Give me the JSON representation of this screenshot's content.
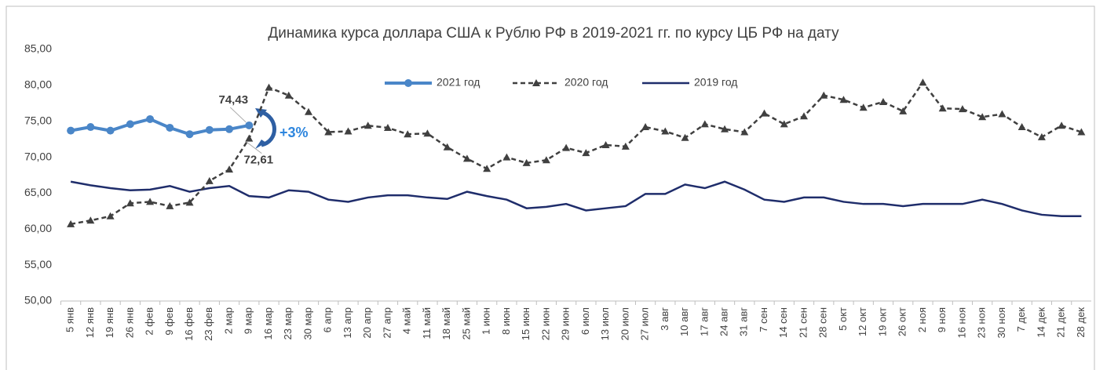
{
  "chart_data": {
    "type": "line",
    "title": "Динамика курса доллара США к Рублю РФ в 2019-2021 гг. по курсу ЦБ РФ на дату",
    "categories": [
      "5 янв",
      "12 янв",
      "19 янв",
      "26 янв",
      "2 фев",
      "9 фев",
      "16 фев",
      "23 фев",
      "2 мар",
      "9 мар",
      "16 мар",
      "23 мар",
      "30 мар",
      "6 апр",
      "13 апр",
      "20 апр",
      "27 апр",
      "4 май",
      "11 май",
      "18 май",
      "25 май",
      "1 июн",
      "8 июн",
      "15 июн",
      "22 июн",
      "29 июн",
      "6 июл",
      "13 июл",
      "20 июл",
      "27 июл",
      "3 авг",
      "10 авг",
      "17 авг",
      "24 авг",
      "31 авг",
      "7 сен",
      "14 сен",
      "21 сен",
      "28 сен",
      "5 окт",
      "12 окт",
      "19 окт",
      "26 окт",
      "2 ноя",
      "9 ноя",
      "16 ноя",
      "23 ноя",
      "30 ноя",
      "7 дек",
      "14 дек",
      "21 дек",
      "28 дек"
    ],
    "series": [
      {
        "name": "2021 год",
        "color": "#4a86c8",
        "dash": false,
        "marker": "circle",
        "values": [
          73.7,
          74.2,
          73.7,
          74.6,
          75.3,
          74.1,
          73.2,
          73.8,
          73.9,
          74.43,
          null,
          null,
          null,
          null,
          null,
          null,
          null,
          null,
          null,
          null,
          null,
          null,
          null,
          null,
          null,
          null,
          null,
          null,
          null,
          null,
          null,
          null,
          null,
          null,
          null,
          null,
          null,
          null,
          null,
          null,
          null,
          null,
          null,
          null,
          null,
          null,
          null,
          null,
          null,
          null,
          null,
          null
        ],
        "value_labels": [
          null,
          null,
          null,
          null,
          null,
          null,
          null,
          null,
          null,
          "74,43",
          null,
          null,
          null,
          null,
          null,
          null,
          null,
          null,
          null,
          null,
          null,
          null,
          null,
          null,
          null,
          null,
          null,
          null,
          null,
          null,
          null,
          null,
          null,
          null,
          null,
          null,
          null,
          null,
          null,
          null,
          null,
          null,
          null,
          null,
          null,
          null,
          null,
          null,
          null,
          null,
          null,
          null
        ]
      },
      {
        "name": "2020 год",
        "color": "#404040",
        "dash": true,
        "marker": "triangle",
        "values": [
          60.7,
          61.2,
          61.8,
          63.6,
          63.8,
          63.2,
          63.7,
          66.7,
          68.3,
          72.61,
          79.7,
          78.6,
          76.3,
          73.5,
          73.6,
          74.4,
          74.1,
          73.2,
          73.3,
          71.4,
          69.8,
          68.4,
          70.0,
          69.2,
          69.6,
          71.3,
          70.6,
          71.7,
          71.5,
          74.2,
          73.6,
          72.7,
          74.6,
          73.9,
          73.5,
          76.1,
          74.6,
          75.7,
          78.6,
          78.0,
          76.9,
          77.7,
          76.4,
          80.4,
          76.8,
          76.7,
          75.6,
          76.0,
          74.2,
          72.8,
          74.4,
          73.5
        ],
        "value_labels": [
          null,
          null,
          null,
          null,
          null,
          null,
          null,
          null,
          null,
          "72,61",
          null,
          null,
          null,
          null,
          null,
          null,
          null,
          null,
          null,
          null,
          null,
          null,
          null,
          null,
          null,
          null,
          null,
          null,
          null,
          null,
          null,
          null,
          null,
          null,
          null,
          null,
          null,
          null,
          null,
          null,
          null,
          null,
          null,
          null,
          null,
          null,
          null,
          null,
          null,
          null,
          null,
          null
        ]
      },
      {
        "name": "2019 год",
        "color": "#1f2d6b",
        "dash": false,
        "marker": "none",
        "values": [
          66.6,
          66.1,
          65.7,
          65.4,
          65.5,
          66.0,
          65.2,
          65.7,
          66.0,
          64.6,
          64.4,
          65.4,
          65.2,
          64.1,
          63.8,
          64.4,
          64.7,
          64.7,
          64.4,
          64.2,
          65.2,
          64.6,
          64.1,
          62.9,
          63.1,
          63.5,
          62.6,
          62.9,
          63.2,
          64.9,
          64.9,
          66.2,
          65.7,
          66.6,
          65.5,
          64.1,
          63.8,
          64.4,
          64.4,
          63.8,
          63.5,
          63.5,
          63.2,
          63.5,
          63.5,
          63.5,
          64.1,
          63.5,
          62.6,
          62.0,
          61.8,
          61.8
        ]
      }
    ],
    "annotation": "+3%",
    "ylim": [
      50,
      85
    ],
    "yticks": [
      {
        "value": 50,
        "label": "50,00"
      },
      {
        "value": 55,
        "label": "55,00"
      },
      {
        "value": 60,
        "label": "60,00"
      },
      {
        "value": 65,
        "label": "65,00"
      },
      {
        "value": 70,
        "label": "70,00"
      },
      {
        "value": 75,
        "label": "75,00"
      },
      {
        "value": 80,
        "label": "80,00"
      },
      {
        "value": 85,
        "label": "85,00"
      }
    ],
    "grid": false,
    "legend": "top"
  }
}
